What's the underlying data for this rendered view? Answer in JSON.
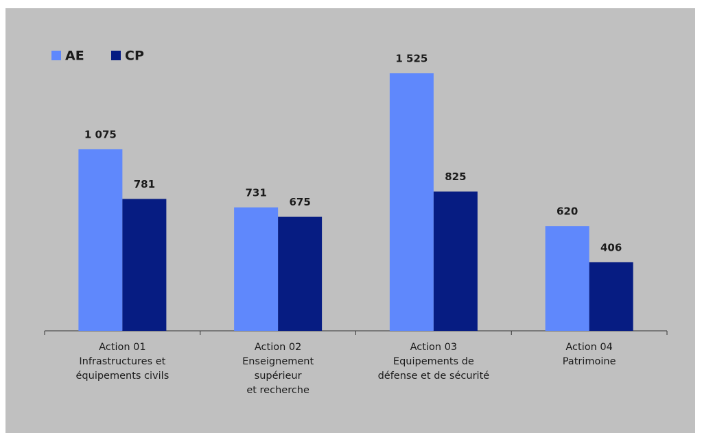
{
  "chart_data": {
    "type": "bar",
    "categories": [
      [
        "Action 01",
        "Infrastructures et",
        "équipements civils"
      ],
      [
        "Action 02",
        "Enseignement",
        "supérieur",
        "et recherche"
      ],
      [
        "Action 03",
        "Equipements de",
        "défense et de sécurité"
      ],
      [
        "Action 04",
        "Patrimoine"
      ]
    ],
    "series": [
      {
        "name": "AE",
        "color": "#5f88fc",
        "values": [
          1075,
          731,
          1525,
          620
        ],
        "value_labels": [
          "1 075",
          "731",
          "1 525",
          "620"
        ]
      },
      {
        "name": "CP",
        "color": "#061c82",
        "values": [
          781,
          675,
          825,
          406
        ],
        "value_labels": [
          "781",
          "675",
          "825",
          "406"
        ]
      }
    ],
    "legend": "top-left"
  }
}
